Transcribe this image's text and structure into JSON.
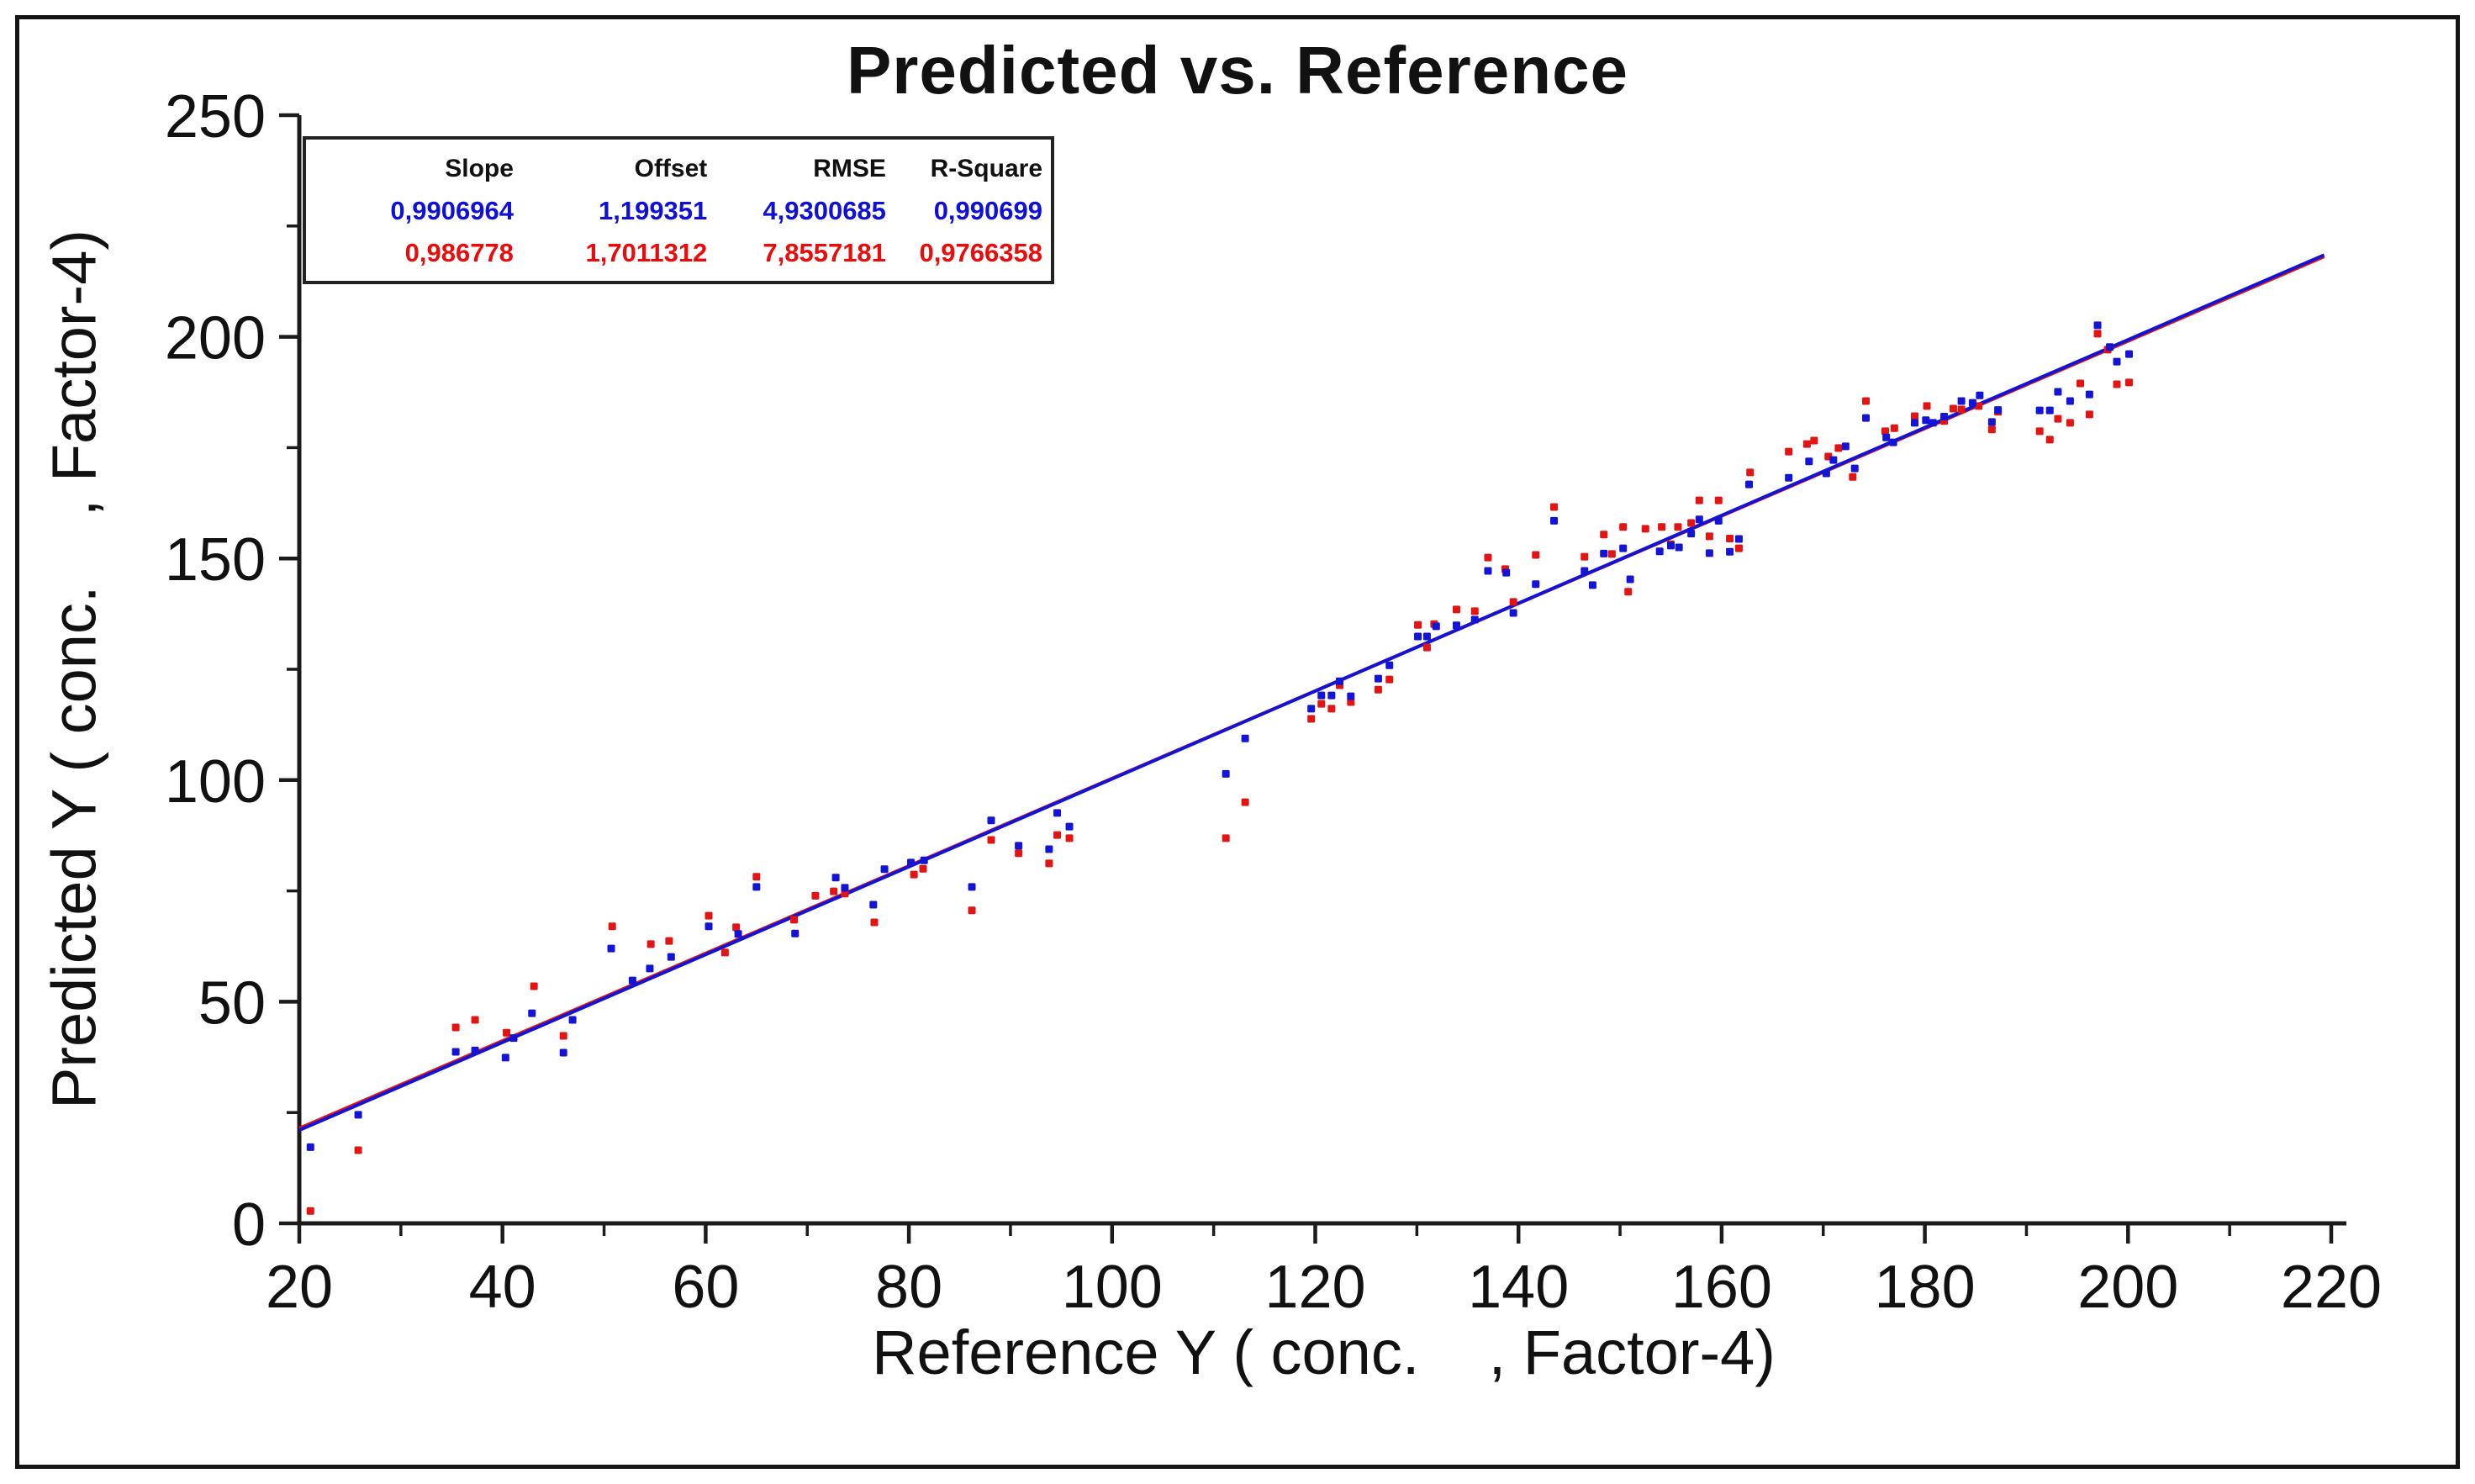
{
  "figure": {
    "title": "Predicted vs. Reference",
    "background": "#ffffff",
    "border_color": "#141414"
  },
  "stats_table": {
    "headers": [
      "Slope",
      "Offset",
      "RMSE",
      "R-Square"
    ],
    "rows": [
      {
        "color": "#0f0fd8",
        "values": [
          "0,9906964",
          "1,199351",
          "4,9300685",
          "0,990699"
        ]
      },
      {
        "color": "#ea0c0c",
        "values": [
          "0,986778",
          "1,7011312",
          "7,8557181",
          "0,9766358"
        ]
      }
    ]
  },
  "chart_data": {
    "type": "scatter",
    "title": "Predicted vs. Reference",
    "xlabel": "Reference Y ( conc.    , Factor-4)",
    "ylabel": "Predicted Y ( conc.    , Factor-4)",
    "xlim": [
      20,
      220
    ],
    "ylim": [
      0,
      250
    ],
    "x_major_ticks": [
      20,
      40,
      60,
      80,
      100,
      120,
      140,
      160,
      180,
      200,
      220
    ],
    "x_minor_ticks": [
      30,
      50,
      70,
      90,
      110,
      130,
      150,
      170,
      190,
      210
    ],
    "y_major_ticks": [
      0,
      50,
      100,
      150,
      200,
      250
    ],
    "y_minor_ticks": [
      25,
      75,
      125,
      175,
      225
    ],
    "grid": false,
    "axis_color": "#1b1b1b",
    "regression_lines": [
      {
        "name": "blue-fit",
        "color": "#1313d6",
        "slope": 0.9906964,
        "offset": 1.199351,
        "x_range": [
          20,
          219.3
        ]
      },
      {
        "name": "red-fit",
        "color": "#e21414",
        "slope": 0.986778,
        "offset": 1.7011312,
        "x_range": [
          20,
          219.3
        ]
      }
    ],
    "series": [
      {
        "name": "blue",
        "color": "#1414d6",
        "marker": "square",
        "points": [
          [
            21.1,
            17.2
          ],
          [
            25.8,
            24.5
          ],
          [
            35.4,
            38.7
          ],
          [
            37.3,
            39
          ],
          [
            40.3,
            37.4
          ],
          [
            41.1,
            41.8
          ],
          [
            42.9,
            47.4
          ],
          [
            46,
            38.5
          ],
          [
            46.9,
            45.9
          ],
          [
            50.7,
            62
          ],
          [
            52.8,
            54.8
          ],
          [
            54.5,
            57.5
          ],
          [
            56.6,
            60.1
          ],
          [
            60.3,
            67
          ],
          [
            63.2,
            65.3
          ],
          [
            65,
            75.9
          ],
          [
            68.8,
            65.4
          ],
          [
            72.8,
            78
          ],
          [
            73.7,
            75.7
          ],
          [
            76.5,
            71.9
          ],
          [
            77.6,
            79.9
          ],
          [
            80.2,
            81.4
          ],
          [
            81.5,
            81.9
          ],
          [
            86.2,
            75.9
          ],
          [
            88.1,
            90.9
          ],
          [
            90.8,
            85.2
          ],
          [
            93.8,
            84.4
          ],
          [
            94.6,
            92.6
          ],
          [
            95.8,
            89.5
          ],
          [
            111.2,
            101.4
          ],
          [
            113.1,
            109.4
          ],
          [
            119.6,
            116.1
          ],
          [
            120.6,
            119.1
          ],
          [
            121.6,
            119.1
          ],
          [
            122.4,
            122.3
          ],
          [
            123.5,
            118.9
          ],
          [
            126.2,
            122.9
          ],
          [
            127.3,
            125.9
          ],
          [
            130.1,
            132.4
          ],
          [
            131,
            132.4
          ],
          [
            131.9,
            134.7
          ],
          [
            133.9,
            134.9
          ],
          [
            135.7,
            136.2
          ],
          [
            137,
            147.2
          ],
          [
            138.8,
            146.8
          ],
          [
            139.5,
            137.7
          ],
          [
            141.7,
            144.2
          ],
          [
            143.5,
            158.5
          ],
          [
            146.5,
            147.2
          ],
          [
            147.3,
            144
          ],
          [
            148.4,
            151.1
          ],
          [
            150.3,
            152.3
          ],
          [
            151,
            145.3
          ],
          [
            153.9,
            151.6
          ],
          [
            155,
            152.9
          ],
          [
            155.8,
            152.5
          ],
          [
            157,
            155.6
          ],
          [
            157.8,
            158.8
          ],
          [
            158.8,
            151.2
          ],
          [
            159.7,
            158.5
          ],
          [
            160.8,
            151.5
          ],
          [
            161.7,
            154.4
          ],
          [
            162.7,
            166.7
          ],
          [
            166.6,
            168.2
          ],
          [
            168.6,
            171.9
          ],
          [
            170.3,
            169.2
          ],
          [
            171,
            172.2
          ],
          [
            172.2,
            175.3
          ],
          [
            173.1,
            170.3
          ],
          [
            174.2,
            181.7
          ],
          [
            176.2,
            177.3
          ],
          [
            176.9,
            176.2
          ],
          [
            179,
            180.6
          ],
          [
            180.1,
            181.2
          ],
          [
            180.8,
            180.6
          ],
          [
            181.9,
            182
          ],
          [
            183.6,
            185.5
          ],
          [
            184.7,
            185.1
          ],
          [
            185.4,
            186.8
          ],
          [
            186.6,
            180.8
          ],
          [
            187.2,
            183.5
          ],
          [
            191.3,
            183.4
          ],
          [
            192.3,
            183.4
          ],
          [
            193.1,
            187.6
          ],
          [
            194.3,
            185.5
          ],
          [
            196.2,
            187
          ],
          [
            197,
            202.6
          ],
          [
            198.2,
            197.7
          ],
          [
            198.9,
            194.4
          ],
          [
            200.1,
            196.1
          ]
        ]
      },
      {
        "name": "red",
        "color": "#e21414",
        "marker": "square",
        "points": [
          [
            21.1,
            2.8
          ],
          [
            25.8,
            16.5
          ],
          [
            35.4,
            44.2
          ],
          [
            37.3,
            45.9
          ],
          [
            40.4,
            43
          ],
          [
            43.1,
            53.5
          ],
          [
            46,
            42.3
          ],
          [
            50.8,
            67
          ],
          [
            54.6,
            63
          ],
          [
            56.4,
            63.7
          ],
          [
            60.3,
            69.4
          ],
          [
            61.9,
            61.1
          ],
          [
            63,
            66.8
          ],
          [
            65,
            78.2
          ],
          [
            68.7,
            68.5
          ],
          [
            70.8,
            73.9
          ],
          [
            72.6,
            74.9
          ],
          [
            73.7,
            74.4
          ],
          [
            76.6,
            67.9
          ],
          [
            80.5,
            78.7
          ],
          [
            81.4,
            80
          ],
          [
            86.2,
            70.6
          ],
          [
            88.1,
            86.5
          ],
          [
            90.8,
            83.5
          ],
          [
            93.8,
            81.2
          ],
          [
            94.6,
            87.6
          ],
          [
            95.8,
            86.9
          ],
          [
            111.2,
            86.9
          ],
          [
            113.1,
            95
          ],
          [
            119.6,
            113.8
          ],
          [
            120.6,
            117.2
          ],
          [
            121.6,
            116.1
          ],
          [
            122.4,
            121.4
          ],
          [
            123.5,
            117.6
          ],
          [
            126.2,
            120.4
          ],
          [
            127.3,
            122.7
          ],
          [
            130.1,
            135
          ],
          [
            131,
            129.9
          ],
          [
            131.7,
            135.2
          ],
          [
            133.9,
            138.5
          ],
          [
            135.7,
            138.1
          ],
          [
            137,
            150.2
          ],
          [
            138.7,
            147.6
          ],
          [
            139.5,
            140.2
          ],
          [
            141.7,
            150.8
          ],
          [
            143.5,
            161.6
          ],
          [
            146.5,
            150.4
          ],
          [
            148.4,
            155.4
          ],
          [
            149.2,
            151
          ],
          [
            150.3,
            157.1
          ],
          [
            150.8,
            142.5
          ],
          [
            152.5,
            156.7
          ],
          [
            154.1,
            157.1
          ],
          [
            155,
            153.2
          ],
          [
            155.7,
            157.1
          ],
          [
            157,
            158
          ],
          [
            157.8,
            163.1
          ],
          [
            158.8,
            155
          ],
          [
            159.7,
            163.1
          ],
          [
            160.8,
            154.5
          ],
          [
            161.7,
            152.3
          ],
          [
            162.8,
            169.4
          ],
          [
            166.6,
            174.1
          ],
          [
            168.4,
            175.8
          ],
          [
            169.1,
            176.6
          ],
          [
            170.5,
            173
          ],
          [
            171.5,
            174.9
          ],
          [
            172.9,
            168.4
          ],
          [
            174.2,
            185.5
          ],
          [
            176.1,
            178.7
          ],
          [
            177,
            179.4
          ],
          [
            179,
            182.1
          ],
          [
            180.2,
            184.4
          ],
          [
            181.9,
            181
          ],
          [
            182.8,
            183.8
          ],
          [
            183.6,
            183.6
          ],
          [
            185.3,
            184.4
          ],
          [
            186.6,
            179.1
          ],
          [
            187.2,
            183.1
          ],
          [
            191.3,
            178.7
          ],
          [
            192.3,
            176.8
          ],
          [
            193.1,
            181.5
          ],
          [
            194.3,
            180.6
          ],
          [
            195.3,
            189.5
          ],
          [
            196.2,
            182.5
          ],
          [
            197,
            200.7
          ],
          [
            198,
            197.1
          ],
          [
            198.9,
            189.3
          ],
          [
            200.1,
            189.7
          ]
        ]
      }
    ]
  }
}
